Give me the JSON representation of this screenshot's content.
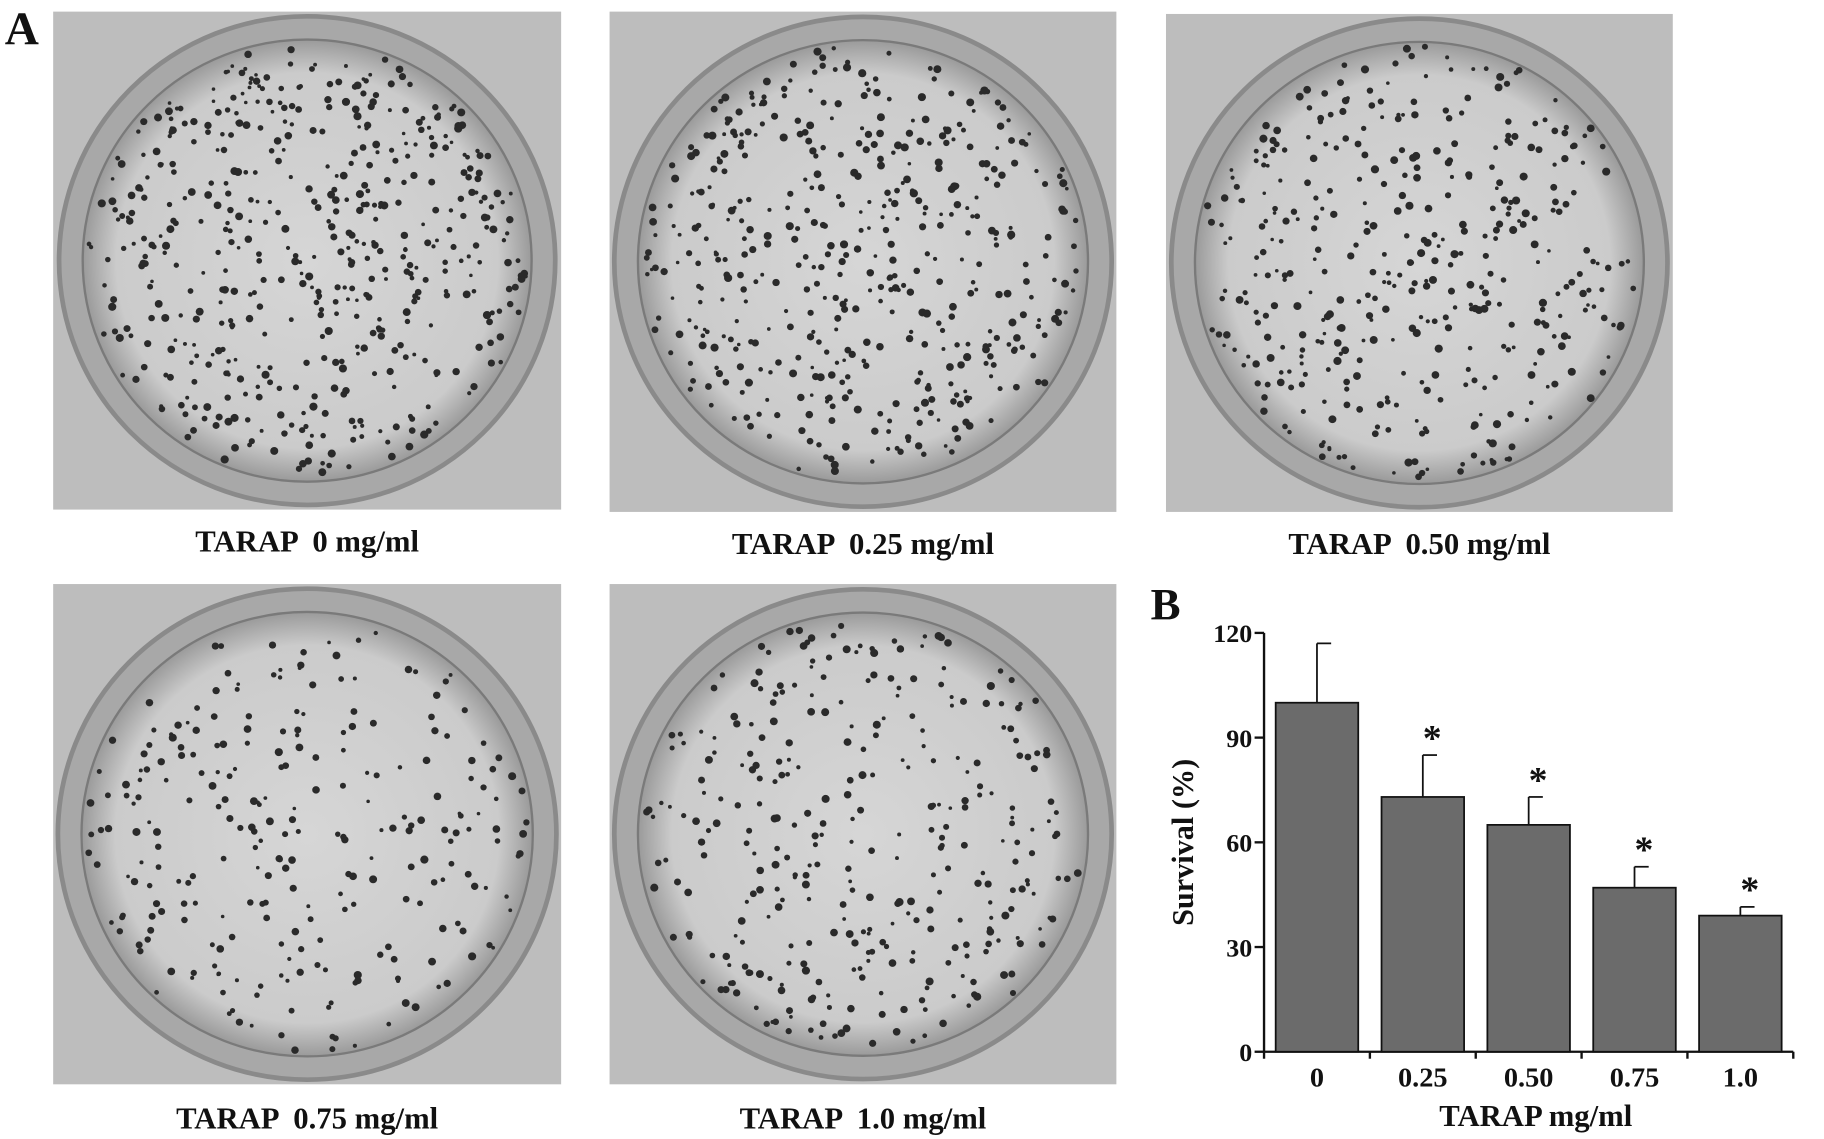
{
  "panel_labels": [
    "A",
    "B"
  ],
  "photos": [
    {
      "caption": "TARAP  0 mg/ml"
    },
    {
      "caption": "TARAP  0.25 mg/ml"
    },
    {
      "caption": "TARAP  0.50 mg/ml"
    },
    {
      "caption": "TARAP  0.75 mg/ml"
    },
    {
      "caption": "TARAP  1.0 mg/ml"
    }
  ],
  "chart_data": {
    "type": "bar",
    "x_label": "TARAP mg/ml",
    "y_label": "Survival (%)",
    "categories": [
      "0",
      "0.25",
      "0.50",
      "0.75",
      "1.0"
    ],
    "values": [
      100,
      73,
      65,
      47,
      39
    ],
    "errors": [
      17,
      12,
      8,
      6,
      2.5
    ],
    "significance": [
      null,
      "*",
      "*",
      "*",
      "*"
    ],
    "color": "#6b6b6b",
    "ylim": [
      0,
      120
    ],
    "yticks": [
      0,
      30,
      60,
      90,
      120
    ]
  }
}
